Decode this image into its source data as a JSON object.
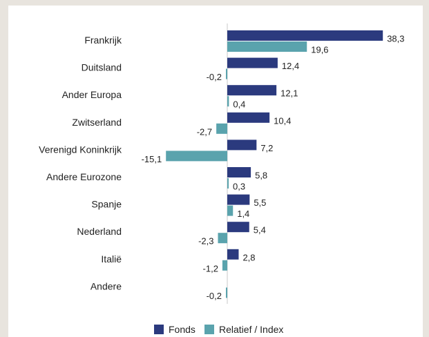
{
  "chart_data": {
    "type": "bar",
    "orientation": "horizontal",
    "categories": [
      "Frankrijk",
      "Duitsland",
      "Ander Europa",
      "Zwitserland",
      "Verenigd Koninkrijk",
      "Andere Eurozone",
      "Spanje",
      "Nederland",
      "Italië",
      "Andere"
    ],
    "series": [
      {
        "name": "Fonds",
        "color": "#2b3a7e",
        "values": [
          38.3,
          12.4,
          12.1,
          10.4,
          7.2,
          5.8,
          5.5,
          5.4,
          2.8,
          null
        ],
        "labels": [
          "38,3",
          "12,4",
          "12,1",
          "10,4",
          "7,2",
          "5,8",
          "5,5",
          "5,4",
          "2,8",
          ""
        ]
      },
      {
        "name": "Relatief / Index",
        "color": "#5aa3ad",
        "values": [
          19.6,
          -0.2,
          0.4,
          -2.7,
          -15.1,
          0.3,
          1.4,
          -2.3,
          -1.2,
          -0.2
        ],
        "labels": [
          "19,6",
          "-0,2",
          "0,4",
          "-2,7",
          "-15,1",
          "0,3",
          "1,4",
          "-2,3",
          "-1,2",
          "-0,2"
        ]
      }
    ],
    "xlim": [
      -15.1,
      38.3
    ],
    "zero_line": true,
    "grid": false,
    "legend": {
      "placement": "bottom-center",
      "entries": [
        "Fonds",
        "Relatief / Index"
      ]
    }
  }
}
